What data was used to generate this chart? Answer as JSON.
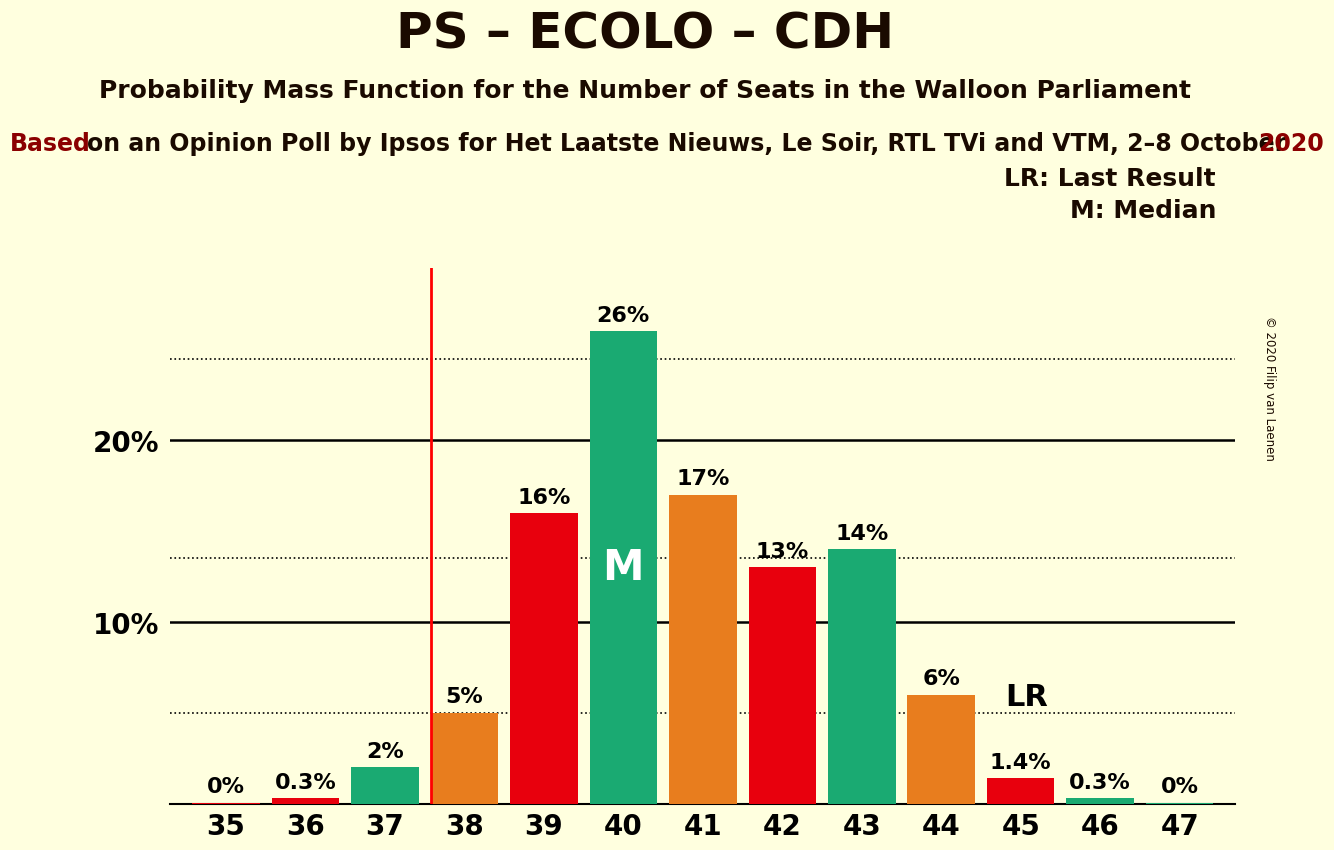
{
  "title": "PS – ECOLO – CDH",
  "subtitle1": "Probability Mass Function for the Number of Seats in the Walloon Parliament",
  "subtitle2_main": "on an Opinion Poll by Ipsos for Het Laatste Nieuws, Le Soir, RTL TVi and VTM, 2–8 October",
  "subtitle2_prefix": "Based",
  "subtitle2_suffix": "2020",
  "copyright": "© 2020 Filip van Laenen",
  "categories": [
    35,
    36,
    37,
    38,
    39,
    40,
    41,
    42,
    43,
    44,
    45,
    46,
    47
  ],
  "values": [
    0.05,
    0.3,
    2.0,
    5.0,
    16.0,
    26.0,
    17.0,
    13.0,
    14.0,
    6.0,
    1.4,
    0.3,
    0.05
  ],
  "bar_colors": [
    "#e8000d",
    "#e8000d",
    "#1aaa72",
    "#e87d1e",
    "#e8000d",
    "#1aaa72",
    "#e87d1e",
    "#e8000d",
    "#1aaa72",
    "#e87d1e",
    "#e8000d",
    "#1aaa72",
    "#1aaa72"
  ],
  "labels": [
    "0%",
    "0.3%",
    "2%",
    "5%",
    "16%",
    "26%",
    "17%",
    "13%",
    "14%",
    "6%",
    "1.4%",
    "0.3%",
    "0%"
  ],
  "background_color": "#ffffdf",
  "lr_x": 37.575,
  "lr_label": "LR",
  "lr_dotted_y": 5.0,
  "median_x": 40,
  "median_label": "M",
  "legend_lr": "LR: Last Result",
  "legend_m": "M: Median",
  "dotted_levels": [
    5.0,
    13.5,
    24.5
  ],
  "solid_levels": [
    10.0,
    20.0
  ],
  "title_fontsize": 36,
  "subtitle1_fontsize": 18,
  "subtitle2_fontsize": 17,
  "bar_label_fontsize": 16,
  "median_label_fontsize": 30,
  "lr_label_fontsize": 22,
  "ytick_fontsize": 20,
  "xtick_fontsize": 20,
  "legend_fontsize": 18,
  "ylim": [
    0,
    29.5
  ],
  "xlim_left": 34.3,
  "xlim_right": 47.7
}
